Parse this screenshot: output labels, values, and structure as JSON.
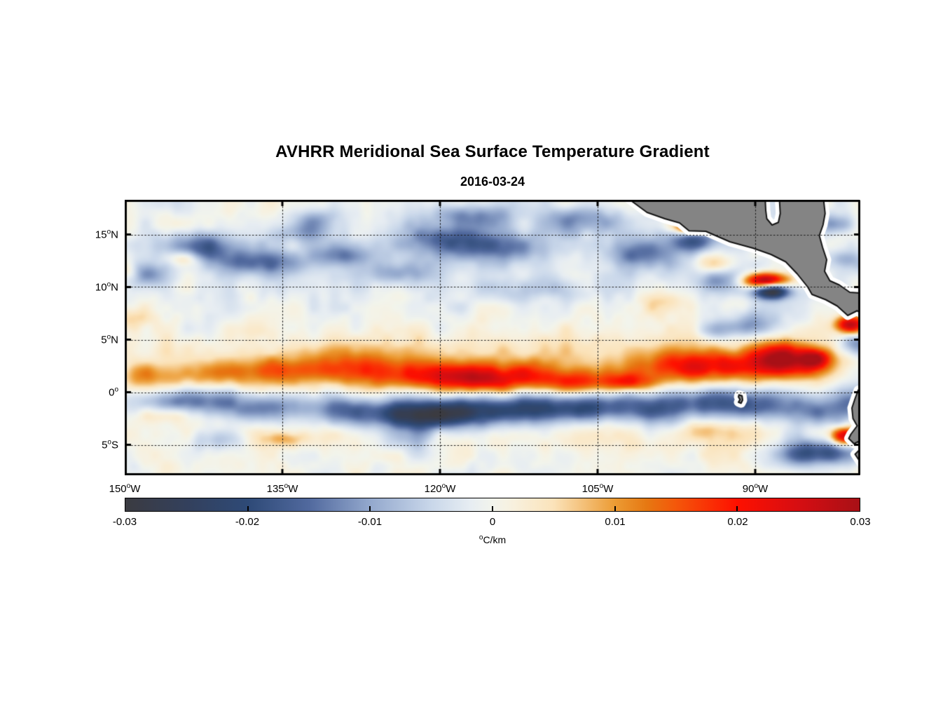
{
  "title": "AVHRR Meridional Sea Surface Temperature Gradient",
  "subtitle": "2016-03-24",
  "chart_data": {
    "type": "heatmap",
    "title": "AVHRR Meridional Sea Surface Temperature Gradient",
    "subtitle": "2016-03-24",
    "field_units": "°C/km",
    "extent": {
      "lon_min": -150,
      "lon_max": -80,
      "lat_min": -7.9,
      "lat_max": 18.3
    },
    "x_axis": {
      "ticks": [
        {
          "lon": -150,
          "label": "150°W"
        },
        {
          "lon": -135,
          "label": "135°W"
        },
        {
          "lon": -120,
          "label": "120°W"
        },
        {
          "lon": -105,
          "label": "105°W"
        },
        {
          "lon": -90,
          "label": "90°W"
        }
      ]
    },
    "y_axis": {
      "ticks": [
        {
          "lat": 15,
          "label": "15°N"
        },
        {
          "lat": 10,
          "label": "10°N"
        },
        {
          "lat": 5,
          "label": "5°N"
        },
        {
          "lat": 0,
          "label": "0°"
        },
        {
          "lat": -5,
          "label": "5°S"
        }
      ]
    },
    "grid": {
      "style": "dotted",
      "lons": [
        -135,
        -120,
        -105,
        -90
      ],
      "lats": [
        15,
        10,
        5,
        0,
        -5
      ]
    },
    "colorbar": {
      "min": -0.03,
      "max": 0.03,
      "label": "°C/km",
      "ticks": [
        {
          "value": -0.03,
          "label": "-0.03"
        },
        {
          "value": -0.02,
          "label": "-0.02"
        },
        {
          "value": -0.01,
          "label": "-0.01"
        },
        {
          "value": 0,
          "label": "0"
        },
        {
          "value": 0.01,
          "label": "0.01"
        },
        {
          "value": 0.02,
          "label": "0.02"
        },
        {
          "value": 0.03,
          "label": "0.03"
        }
      ],
      "colormap": [
        {
          "t": 0.0,
          "color": "#3b3b41"
        },
        {
          "t": 0.083,
          "color": "#33405c"
        },
        {
          "t": 0.167,
          "color": "#2e4a77"
        },
        {
          "t": 0.25,
          "color": "#51699e"
        },
        {
          "t": 0.333,
          "color": "#93a8cd"
        },
        {
          "t": 0.417,
          "color": "#c9d7ea"
        },
        {
          "t": 0.47,
          "color": "#e7edf2"
        },
        {
          "t": 0.5,
          "color": "#f2f4ec"
        },
        {
          "t": 0.53,
          "color": "#f8f0dd"
        },
        {
          "t": 0.583,
          "color": "#fbe3ba"
        },
        {
          "t": 0.667,
          "color": "#ec9b33"
        },
        {
          "t": 0.71,
          "color": "#e67812"
        },
        {
          "t": 0.75,
          "color": "#f4570a"
        },
        {
          "t": 0.833,
          "color": "#fe1000"
        },
        {
          "t": 0.917,
          "color": "#d60e12"
        },
        {
          "t": 1.0,
          "color": "#a81016"
        }
      ]
    },
    "feature_format": "[lon_deg, lat_deg, sigma_lon_deg, sigma_lat_deg, amplitude_degC_per_km]",
    "features": [
      [
        -148,
        1.5,
        2.5,
        0.9,
        0.006
      ],
      [
        -143,
        1.6,
        4,
        1.0,
        0.0075
      ],
      [
        -136,
        2.0,
        4,
        1.1,
        0.009
      ],
      [
        -128,
        2.3,
        5,
        1.2,
        0.011
      ],
      [
        -121,
        1.5,
        4,
        1.0,
        0.013
      ],
      [
        -116,
        1.1,
        3,
        0.9,
        0.015
      ],
      [
        -111,
        1.7,
        4,
        1.1,
        0.012
      ],
      [
        -107,
        0.9,
        2.5,
        0.8,
        0.013
      ],
      [
        -102,
        0.9,
        1.5,
        0.6,
        0.016
      ],
      [
        -99,
        2.2,
        3,
        1.1,
        0.012
      ],
      [
        -95,
        2.6,
        3,
        1.2,
        0.011
      ],
      [
        -92,
        2.5,
        3,
        1.0,
        0.01
      ],
      [
        -88,
        3.0,
        2.5,
        1.2,
        0.012
      ],
      [
        -85,
        2.8,
        2.2,
        1.3,
        0.014
      ],
      [
        -84.2,
        3.2,
        0.9,
        0.6,
        0.017
      ],
      [
        -87.5,
        3.4,
        1.5,
        0.9,
        0.01
      ],
      [
        -145,
        -0.9,
        4,
        0.9,
        -0.011
      ],
      [
        -138,
        -1.4,
        4,
        1.0,
        -0.009
      ],
      [
        -130,
        -1.7,
        4,
        1.0,
        -0.01
      ],
      [
        -123,
        -2.0,
        4,
        1.0,
        -0.013
      ],
      [
        -122,
        -2.6,
        3,
        1.0,
        -0.01
      ],
      [
        -117,
        -1.9,
        4,
        1.0,
        -0.015
      ],
      [
        -111,
        -1.5,
        4,
        1.0,
        -0.015
      ],
      [
        -105,
        -1.3,
        3,
        1.0,
        -0.013
      ],
      [
        -99,
        -1.6,
        3,
        1.1,
        -0.012
      ],
      [
        -94,
        -1.0,
        3,
        1.0,
        -0.013
      ],
      [
        -89.5,
        -1.3,
        2.5,
        1.0,
        -0.013
      ],
      [
        -84,
        -1.8,
        2.5,
        1.1,
        -0.011
      ],
      [
        -147.9,
        11.2,
        1.5,
        0.8,
        -0.011
      ],
      [
        -142,
        13.8,
        2.5,
        0.9,
        -0.013
      ],
      [
        -137.5,
        12.3,
        3,
        0.8,
        -0.012
      ],
      [
        -133,
        15.2,
        1.8,
        0.7,
        -0.009
      ],
      [
        -132,
        16.5,
        1.5,
        0.7,
        -0.008
      ],
      [
        -129.5,
        13.0,
        2,
        0.7,
        -0.01
      ],
      [
        -124,
        11.4,
        2,
        0.8,
        -0.009
      ],
      [
        -119.5,
        14.5,
        3,
        1.1,
        -0.014
      ],
      [
        -117,
        16.8,
        3,
        0.8,
        -0.01
      ],
      [
        -113.5,
        13.8,
        2.5,
        1.0,
        -0.012
      ],
      [
        -110,
        9.4,
        2.5,
        1.0,
        -0.01
      ],
      [
        -106.5,
        16.3,
        2.5,
        0.9,
        -0.011
      ],
      [
        -100.5,
        13.0,
        2.2,
        1.0,
        -0.012
      ],
      [
        -95.8,
        14.4,
        1.8,
        0.8,
        -0.016
      ],
      [
        -93.5,
        10.8,
        1.5,
        0.8,
        -0.01
      ],
      [
        -90.5,
        6.5,
        2,
        0.9,
        -0.011
      ],
      [
        -93.5,
        5.8,
        1.5,
        0.7,
        -0.008
      ],
      [
        -82.5,
        16.0,
        1.5,
        0.6,
        -0.009
      ],
      [
        -81.3,
        12.5,
        1.2,
        0.7,
        -0.008
      ],
      [
        -80.3,
        4.6,
        1.2,
        0.8,
        -0.012
      ],
      [
        -80.4,
        -0.6,
        1.3,
        1.0,
        -0.012
      ],
      [
        -120,
        12.5,
        30,
        3.5,
        -0.0025
      ],
      [
        -149.5,
        7.0,
        1.2,
        0.8,
        0.007
      ],
      [
        -149.8,
        11.5,
        0.8,
        0.6,
        0.007
      ],
      [
        -144.3,
        12.7,
        1.0,
        0.5,
        0.0075
      ],
      [
        -110,
        8.8,
        1.8,
        0.7,
        0.0065
      ],
      [
        -98.5,
        8.3,
        1.6,
        0.8,
        0.008
      ],
      [
        -93.9,
        12.2,
        1.5,
        0.8,
        0.01
      ],
      [
        -145.9,
        -2.1,
        1.3,
        0.6,
        0.009
      ],
      [
        -135,
        -4.5,
        1.5,
        0.5,
        0.008
      ],
      [
        -94.8,
        -3.7,
        1.5,
        0.7,
        0.008
      ],
      [
        -125,
        4.3,
        15,
        1.5,
        0.0035
      ],
      [
        -100,
        4.5,
        10,
        1.5,
        0.003
      ],
      [
        -135,
        -4.2,
        10,
        1.3,
        0.0035
      ],
      [
        -100,
        -4.3,
        12,
        1.5,
        0.003
      ],
      [
        -141,
        -4.5,
        2.5,
        0.8,
        -0.009
      ],
      [
        -123.2,
        -4.7,
        2,
        0.8,
        -0.008
      ],
      [
        -85.5,
        -5.8,
        2.5,
        1.0,
        -0.012
      ],
      [
        -83,
        -5.6,
        2,
        0.9,
        -0.012
      ],
      [
        -96.2,
        15.7,
        1.0,
        0.4,
        0.026
      ],
      [
        -89.0,
        10.6,
        1.5,
        0.5,
        0.034
      ],
      [
        -88.5,
        9.6,
        1.3,
        0.55,
        -0.03
      ],
      [
        -81.0,
        6.4,
        1.0,
        0.6,
        0.03
      ],
      [
        -81.6,
        -4.2,
        0.9,
        0.6,
        0.028
      ]
    ],
    "noise": {
      "amp1": 0.0028,
      "scale1": 2.0,
      "amp2": 0.0012,
      "scale2": 1.0,
      "seed": 3
    },
    "land": {
      "fill": "#848484",
      "outline": "#141414",
      "halo": "#ffffff",
      "polygons": [
        {
          "name": "central-america",
          "lonlat": [
            [
              -102.0,
              18.35
            ],
            [
              -100.3,
              17.1
            ],
            [
              -98.6,
              16.5
            ],
            [
              -97.2,
              16.1
            ],
            [
              -96.3,
              15.35
            ],
            [
              -94.7,
              15.3
            ],
            [
              -92.4,
              14.3
            ],
            [
              -90.2,
              13.7
            ],
            [
              -88.5,
              13.1
            ],
            [
              -87.1,
              12.4
            ],
            [
              -86.0,
              11.25
            ],
            [
              -85.0,
              10.0
            ],
            [
              -84.6,
              9.3
            ],
            [
              -83.3,
              8.8
            ],
            [
              -82.2,
              8.2
            ],
            [
              -81.2,
              7.3
            ],
            [
              -80.3,
              7.75
            ],
            [
              -79.4,
              7.1
            ],
            [
              -79.4,
              9.4
            ],
            [
              -81.0,
              9.5
            ],
            [
              -82.0,
              10.2
            ],
            [
              -82.9,
              10.6
            ],
            [
              -83.4,
              11.5
            ],
            [
              -83.2,
              12.6
            ],
            [
              -83.6,
              13.8
            ],
            [
              -83.9,
              14.9
            ],
            [
              -83.55,
              15.9
            ],
            [
              -83.35,
              17.0
            ],
            [
              -83.5,
              18.35
            ],
            [
              -87.7,
              18.35
            ],
            [
              -87.62,
              17.0
            ],
            [
              -87.8,
              16.15
            ],
            [
              -88.4,
              15.9
            ],
            [
              -88.9,
              16.5
            ],
            [
              -89.0,
              17.3
            ],
            [
              -89.05,
              18.35
            ]
          ]
        },
        {
          "name": "south-america",
          "lonlat": [
            [
              -79.4,
              0.5
            ],
            [
              -80.2,
              0.2
            ],
            [
              -80.5,
              -0.6
            ],
            [
              -80.8,
              -1.5
            ],
            [
              -80.7,
              -2.5
            ],
            [
              -80.3,
              -3.2
            ],
            [
              -80.9,
              -4.0
            ],
            [
              -81.1,
              -4.4
            ],
            [
              -80.6,
              -4.9
            ],
            [
              -80.2,
              -4.7
            ],
            [
              -80.0,
              -5.4
            ],
            [
              -80.5,
              -5.9
            ],
            [
              -79.9,
              -6.8
            ],
            [
              -79.4,
              -7.1
            ]
          ]
        },
        {
          "name": "galapagos-islands",
          "lonlat": [
            [
              -91.55,
              -0.25
            ],
            [
              -91.25,
              -0.35
            ],
            [
              -91.2,
              -0.75
            ],
            [
              -91.35,
              -1.05
            ],
            [
              -91.6,
              -0.95
            ],
            [
              -91.45,
              -0.7
            ],
            [
              -91.6,
              -0.45
            ]
          ]
        }
      ]
    }
  }
}
